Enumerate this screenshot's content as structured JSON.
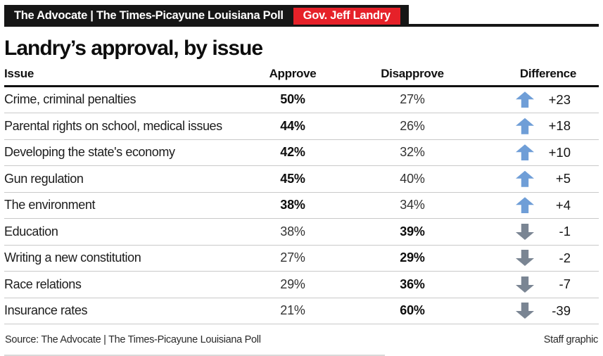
{
  "banner": {
    "brand": "The Advocate | The Times-Picayune Louisiana Poll",
    "badge": "Gov. Jeff Landry"
  },
  "title": "Landry’s approval, by issue",
  "table": {
    "columns": {
      "issue": "Issue",
      "approve": "Approve",
      "disapprove": "Disapprove",
      "difference": "Difference"
    },
    "rows": [
      {
        "issue": "Crime, criminal penalties",
        "approve": "50%",
        "disapprove": "27%",
        "difference": "+23",
        "direction": "up",
        "leader": "approve"
      },
      {
        "issue": "Parental rights on school, medical issues",
        "approve": "44%",
        "disapprove": "26%",
        "difference": "+18",
        "direction": "up",
        "leader": "approve"
      },
      {
        "issue": "Developing the state's economy",
        "approve": "42%",
        "disapprove": "32%",
        "difference": "+10",
        "direction": "up",
        "leader": "approve"
      },
      {
        "issue": "Gun regulation",
        "approve": "45%",
        "disapprove": "40%",
        "difference": "+5",
        "direction": "up",
        "leader": "approve"
      },
      {
        "issue": "The environment",
        "approve": "38%",
        "disapprove": "34%",
        "difference": "+4",
        "direction": "up",
        "leader": "approve"
      },
      {
        "issue": "Education",
        "approve": "38%",
        "disapprove": "39%",
        "difference": "-1",
        "direction": "down",
        "leader": "disapprove"
      },
      {
        "issue": "Writing a new constitution",
        "approve": "27%",
        "disapprove": "29%",
        "difference": "-2",
        "direction": "down",
        "leader": "disapprove"
      },
      {
        "issue": "Race relations",
        "approve": "29%",
        "disapprove": "36%",
        "difference": "-7",
        "direction": "down",
        "leader": "disapprove"
      },
      {
        "issue": "Insurance rates",
        "approve": "21%",
        "disapprove": "60%",
        "difference": "-39",
        "direction": "down",
        "leader": "disapprove"
      }
    ]
  },
  "footer": {
    "source": "Source: The Advocate | The Times-Picayune Louisiana Poll",
    "credit": "Staff graphic"
  },
  "colors": {
    "up_arrow": "#6f9ed7",
    "down_arrow": "#7a8593",
    "badge_red": "#e62129",
    "bar_black": "#161616"
  },
  "chart_data": {
    "type": "table",
    "title": "Landry's approval, by issue",
    "columns": [
      "Issue",
      "Approve",
      "Disapprove",
      "Difference"
    ],
    "rows": [
      [
        "Crime, criminal penalties",
        50,
        27,
        23
      ],
      [
        "Parental rights on school, medical issues",
        44,
        26,
        18
      ],
      [
        "Developing the state's economy",
        42,
        32,
        10
      ],
      [
        "Gun regulation",
        45,
        40,
        5
      ],
      [
        "The environment",
        38,
        34,
        4
      ],
      [
        "Education",
        38,
        39,
        -1
      ],
      [
        "Writing a new constitution",
        27,
        29,
        -2
      ],
      [
        "Race relations",
        29,
        36,
        -7
      ],
      [
        "Insurance rates",
        21,
        60,
        -39
      ]
    ],
    "notes": "Up arrows (blue) mark net approval; down arrows (gray) mark net disapproval. Higher of approve/disapprove is bolded per row."
  }
}
